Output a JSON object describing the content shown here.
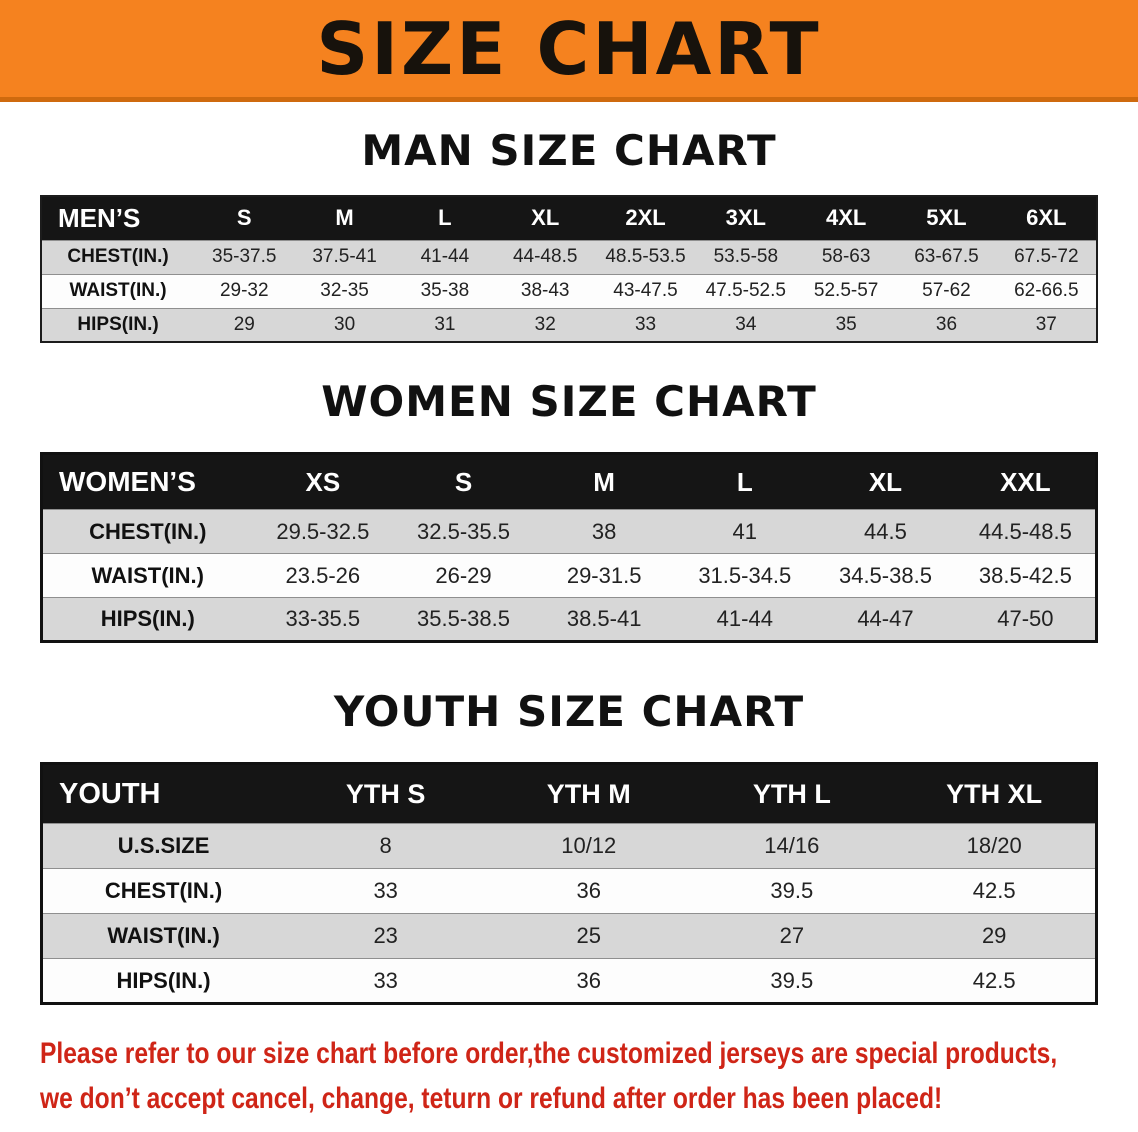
{
  "banner": {
    "title": "SIZE CHART",
    "bg_color": "#f5821f"
  },
  "sections": [
    {
      "id": "men",
      "heading": "MAN SIZE CHART",
      "table": {
        "header": [
          "MEN’S",
          "S",
          "M",
          "L",
          "XL",
          "2XL",
          "3XL",
          "4XL",
          "5XL",
          "6XL"
        ],
        "rows": [
          {
            "label": "CHEST(IN.)",
            "values": [
              "35-37.5",
              "37.5-41",
              "41-44",
              "44-48.5",
              "48.5-53.5",
              "53.5-58",
              "58-63",
              "63-67.5",
              "67.5-72"
            ]
          },
          {
            "label": "WAIST(IN.)",
            "values": [
              "29-32",
              "32-35",
              "35-38",
              "38-43",
              "43-47.5",
              "47.5-52.5",
              "52.5-57",
              "57-62",
              "62-66.5"
            ]
          },
          {
            "label": "HIPS(IN.)",
            "values": [
              "29",
              "30",
              "31",
              "32",
              "33",
              "34",
              "35",
              "36",
              "37"
            ]
          }
        ]
      }
    },
    {
      "id": "women",
      "heading": "WOMEN SIZE CHART",
      "table": {
        "header": [
          "WOMEN’S",
          "XS",
          "S",
          "M",
          "L",
          "XL",
          "XXL"
        ],
        "rows": [
          {
            "label": "CHEST(IN.)",
            "values": [
              "29.5-32.5",
              "32.5-35.5",
              "38",
              "41",
              "44.5",
              "44.5-48.5"
            ]
          },
          {
            "label": "WAIST(IN.)",
            "values": [
              "23.5-26",
              "26-29",
              "29-31.5",
              "31.5-34.5",
              "34.5-38.5",
              "38.5-42.5"
            ]
          },
          {
            "label": "HIPS(IN.)",
            "values": [
              "33-35.5",
              "35.5-38.5",
              "38.5-41",
              "41-44",
              "44-47",
              "47-50"
            ]
          }
        ]
      }
    },
    {
      "id": "youth",
      "heading": "YOUTH SIZE CHART",
      "table": {
        "header": [
          "YOUTH",
          "YTH S",
          "YTH M",
          "YTH L",
          "YTH XL"
        ],
        "rows": [
          {
            "label": "U.S.SIZE",
            "values": [
              "8",
              "10/12",
              "14/16",
              "18/20"
            ]
          },
          {
            "label": "CHEST(IN.)",
            "values": [
              "33",
              "36",
              "39.5",
              "42.5"
            ]
          },
          {
            "label": "WAIST(IN.)",
            "values": [
              "23",
              "25",
              "27",
              "29"
            ]
          },
          {
            "label": "HIPS(IN.)",
            "values": [
              "33",
              "36",
              "39.5",
              "42.5"
            ]
          }
        ]
      }
    }
  ],
  "footer": {
    "line1": "Please refer to our size chart before order,the customized jerseys are special products,",
    "line2": "we don’t accept cancel, change, teturn or refund after order has been placed!",
    "text_color": "#cf2517"
  }
}
